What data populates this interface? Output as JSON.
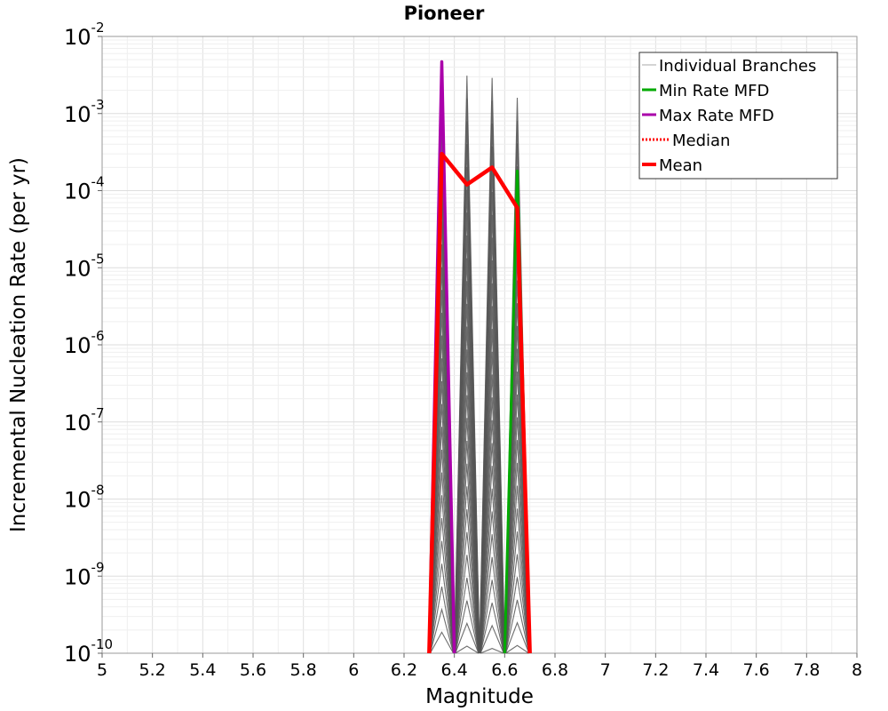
{
  "chart_data": {
    "type": "line",
    "title": "Pioneer",
    "xlabel": "Magnitude",
    "ylabel": "Incremental Nucleation Rate (per yr)",
    "xlim": [
      5,
      8
    ],
    "ylim_log10": [
      -10,
      -2
    ],
    "y_scale": "log",
    "grid": true,
    "x_ticks": [
      "5",
      "5.2",
      "5.4",
      "5.6",
      "5.8",
      "6",
      "6.2",
      "6.4",
      "6.6",
      "6.8",
      "7",
      "7.2",
      "7.4",
      "7.6",
      "7.8",
      "8"
    ],
    "x_tick_values": [
      5,
      5.2,
      5.4,
      5.6,
      5.8,
      6,
      6.2,
      6.4,
      6.6,
      6.8,
      7,
      7.2,
      7.4,
      7.6,
      7.8,
      8
    ],
    "y_ticks": [
      {
        "base": "10",
        "exp": "-2",
        "value": -2
      },
      {
        "base": "10",
        "exp": "-3",
        "value": -3
      },
      {
        "base": "10",
        "exp": "-4",
        "value": -4
      },
      {
        "base": "10",
        "exp": "-5",
        "value": -5
      },
      {
        "base": "10",
        "exp": "-6",
        "value": -6
      },
      {
        "base": "10",
        "exp": "-7",
        "value": -7
      },
      {
        "base": "10",
        "exp": "-8",
        "value": -8
      },
      {
        "base": "10",
        "exp": "-9",
        "value": -9
      },
      {
        "base": "10",
        "exp": "-10",
        "value": -10
      }
    ],
    "legend_position": "top-right",
    "series": [
      {
        "name": "Individual Branches",
        "color": "#555555",
        "style": "thin-dense",
        "peaks": [
          {
            "x": 6.35,
            "y": 0.0047
          },
          {
            "x": 6.45,
            "y": 0.0031
          },
          {
            "x": 6.55,
            "y": 0.0029
          },
          {
            "x": 6.65,
            "y": 0.0016
          }
        ],
        "floor_x": [
          6.3,
          6.4,
          6.5,
          6.6,
          6.7
        ]
      },
      {
        "name": "Min Rate MFD",
        "color": "#00aa00",
        "x": [
          6.6,
          6.65,
          6.7
        ],
        "y": [
          1e-10,
          0.00018,
          1e-10
        ]
      },
      {
        "name": "Max Rate MFD",
        "color": "#aa00aa",
        "x": [
          6.3,
          6.35,
          6.4
        ],
        "y": [
          1e-10,
          0.0047,
          1e-10
        ]
      },
      {
        "name": "Median",
        "color": "#ff0000",
        "style": "dotted",
        "x": [],
        "y": []
      },
      {
        "name": "Mean",
        "color": "#ff0000",
        "x": [
          6.3,
          6.35,
          6.45,
          6.55,
          6.65,
          6.7
        ],
        "y": [
          1e-10,
          0.0003,
          0.00012,
          0.0002,
          6e-05,
          1e-10
        ]
      }
    ]
  }
}
